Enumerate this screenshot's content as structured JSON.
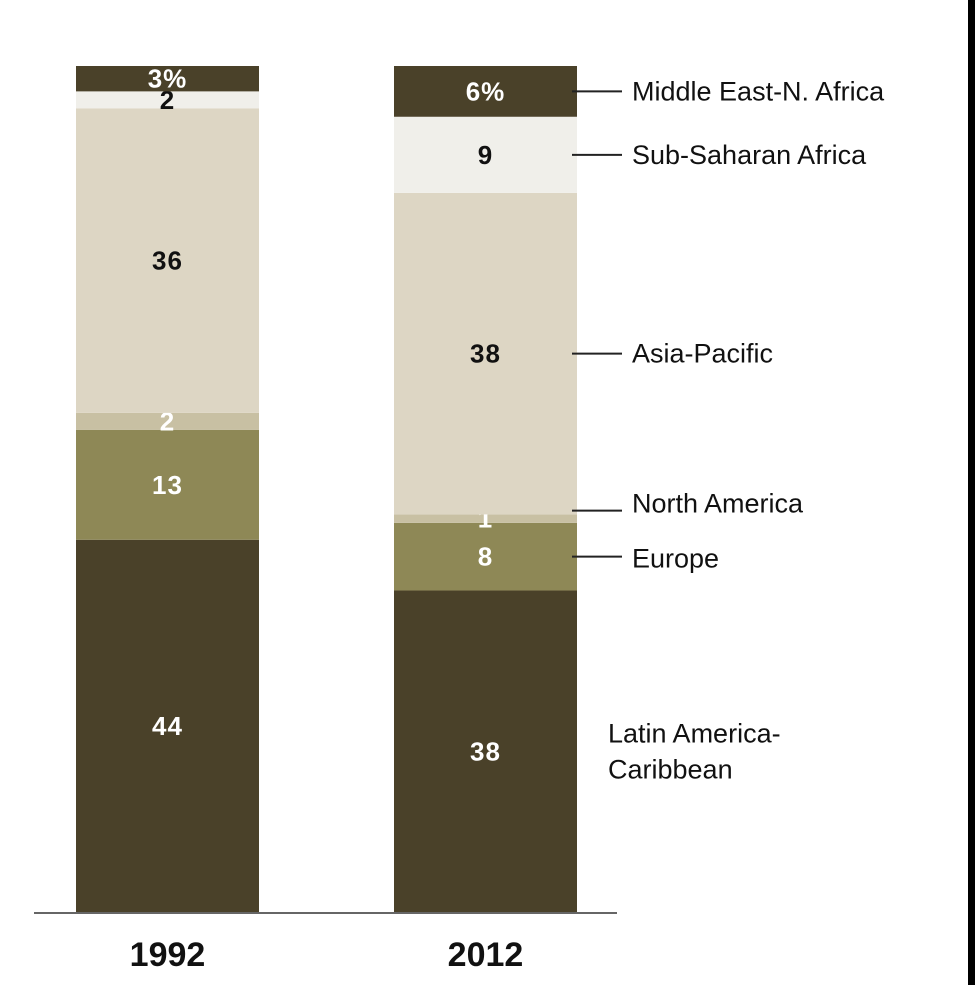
{
  "chart_data": {
    "type": "bar",
    "stacked": true,
    "percent": true,
    "categories": [
      "1992",
      "2012"
    ],
    "series": [
      {
        "name": "Latin America-Caribbean",
        "values": [
          44,
          38
        ],
        "labels": [
          "44",
          "38"
        ],
        "color": "#4a4129",
        "label_color": "#ffffff"
      },
      {
        "name": "Europe",
        "values": [
          13,
          8
        ],
        "labels": [
          "13",
          "8"
        ],
        "color": "#8e8856",
        "label_color": "#ffffff"
      },
      {
        "name": "North America",
        "values": [
          2,
          1
        ],
        "labels": [
          "2",
          "1"
        ],
        "color": "#c8c0a3",
        "label_color": "#ffffff"
      },
      {
        "name": "Asia-Pacific",
        "values": [
          36,
          38
        ],
        "labels": [
          "36",
          "38"
        ],
        "color": "#ddd6c4",
        "label_color": "#111111"
      },
      {
        "name": "Sub-Saharan Africa",
        "values": [
          2,
          9
        ],
        "labels": [
          "2",
          "9"
        ],
        "color": "#f0efea",
        "label_color": "#111111"
      },
      {
        "name": "Middle East-N. Africa",
        "values": [
          3,
          6
        ],
        "labels": [
          "3%",
          "6%"
        ],
        "color": "#4a4129",
        "label_color": "#ffffff"
      }
    ],
    "legend_labels": {
      "Latin America-Caribbean": [
        "Latin America-",
        "Caribbean"
      ]
    },
    "legend_position": "right",
    "ylim": [
      0,
      100
    ],
    "grid": false
  }
}
